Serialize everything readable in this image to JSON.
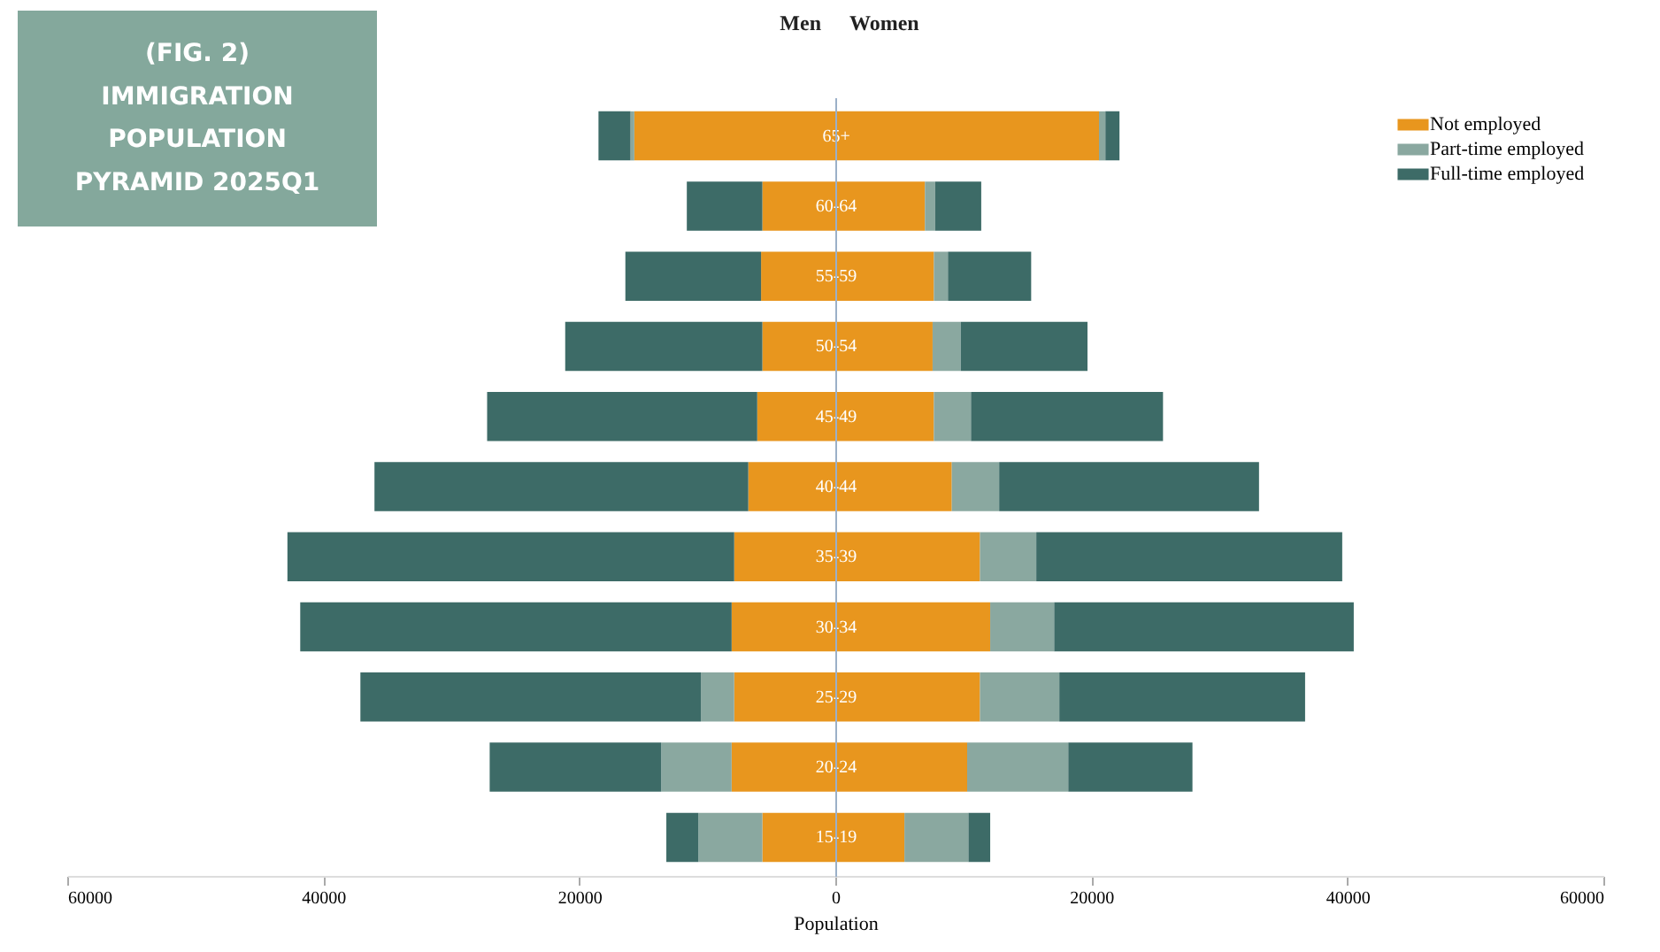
{
  "chart_data": {
    "type": "bar",
    "orientation": "horizontal",
    "stacked": true,
    "title": "(FIG. 2) IMMIGRATION POPULATION PYRAMID 2025Q1",
    "xlabel": "Population",
    "annotations": [
      "Men",
      "Women"
    ],
    "categories": [
      "65+",
      "60-64",
      "55-59",
      "50-54",
      "45-49",
      "40-44",
      "35-39",
      "30-34",
      "25-29",
      "20-24",
      "15-19"
    ],
    "series": [
      {
        "name": "Not employed",
        "color": "#e8961e",
        "values": [
          20600,
          7000,
          7700,
          7600,
          7700,
          9100,
          11300,
          12100,
          11300,
          10300,
          5400
        ]
      },
      {
        "name": "Part-time employed",
        "color": "#8aa8a0",
        "values": [
          500,
          800,
          1100,
          2200,
          2900,
          3700,
          4400,
          5000,
          6200,
          7900,
          5000
        ]
      },
      {
        "name": "Full-time employed",
        "color": "#3d6b67",
        "values": [
          1100,
          3600,
          6500,
          9900,
          15000,
          20300,
          23900,
          23400,
          19200,
          9700,
          1700
        ]
      },
      {
        "color": "#e8961e",
        "values": [
          -15700,
          -5700,
          -5800,
          -5700,
          -6100,
          -6800,
          -7900,
          -8100,
          -7900,
          -8100,
          -5700
        ]
      },
      {
        "color": "#8aa8a0",
        "values": [
          -300,
          0,
          0,
          0,
          0,
          0,
          0,
          0,
          -2600,
          -5500,
          -5000
        ]
      },
      {
        "color": "#3d6b67",
        "values": [
          -2500,
          -5900,
          -10600,
          -15400,
          -21100,
          -29200,
          -34900,
          -33700,
          -26600,
          -13400,
          -2500
        ]
      }
    ],
    "xlim": [
      -60000,
      60000
    ],
    "xticks": [
      {
        "value": -60000,
        "label": "60000"
      },
      {
        "value": -40000,
        "label": "40000"
      },
      {
        "value": -20000,
        "label": "20000"
      },
      0,
      20000,
      40000,
      60000
    ],
    "grid": false,
    "legend": "top right"
  }
}
